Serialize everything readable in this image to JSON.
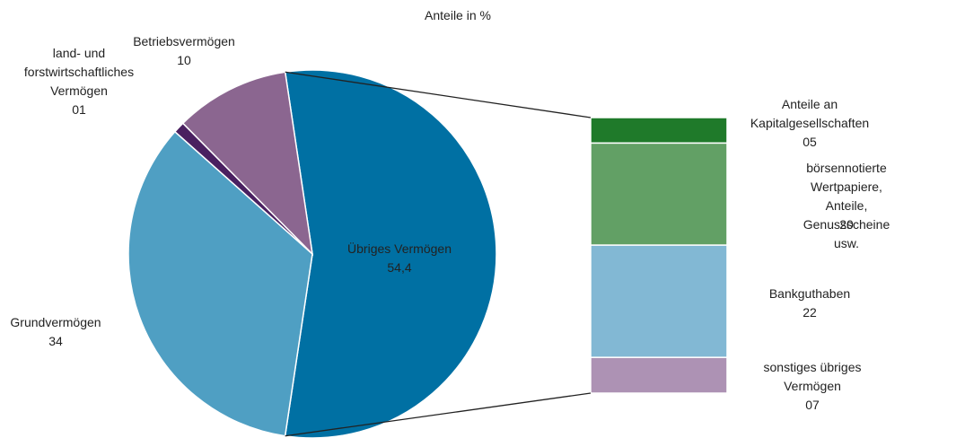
{
  "chart_data": [
    {
      "type": "pie",
      "title": "Anteile in %",
      "categories": [
        "Übriges Vermögen",
        "Grundvermögen",
        "land- und\nforstwirtschaftliches\nVermögen",
        "Betriebsvermögen"
      ],
      "values": [
        54.4,
        34,
        1,
        10
      ],
      "value_labels": [
        "54,4",
        "34",
        "01",
        "10"
      ],
      "colors": [
        "#0070a3",
        "#4f9fc3",
        "#4a2060",
        "#8b6690"
      ]
    },
    {
      "type": "stacked-bar",
      "categories": [
        "Anteile an\nKapitalgesellschaften",
        "börsennotierte Wertpapiere,\nAnteile, Genussscheine\nusw.",
        "Bankguthaben",
        "sonstiges übriges\nVermögen"
      ],
      "values": [
        5,
        20,
        22,
        7
      ],
      "value_labels": [
        "05",
        "20",
        "22",
        "07"
      ],
      "colors": [
        "#1f7a2a",
        "#62a065",
        "#82b8d4",
        "#ad92b4"
      ]
    }
  ]
}
